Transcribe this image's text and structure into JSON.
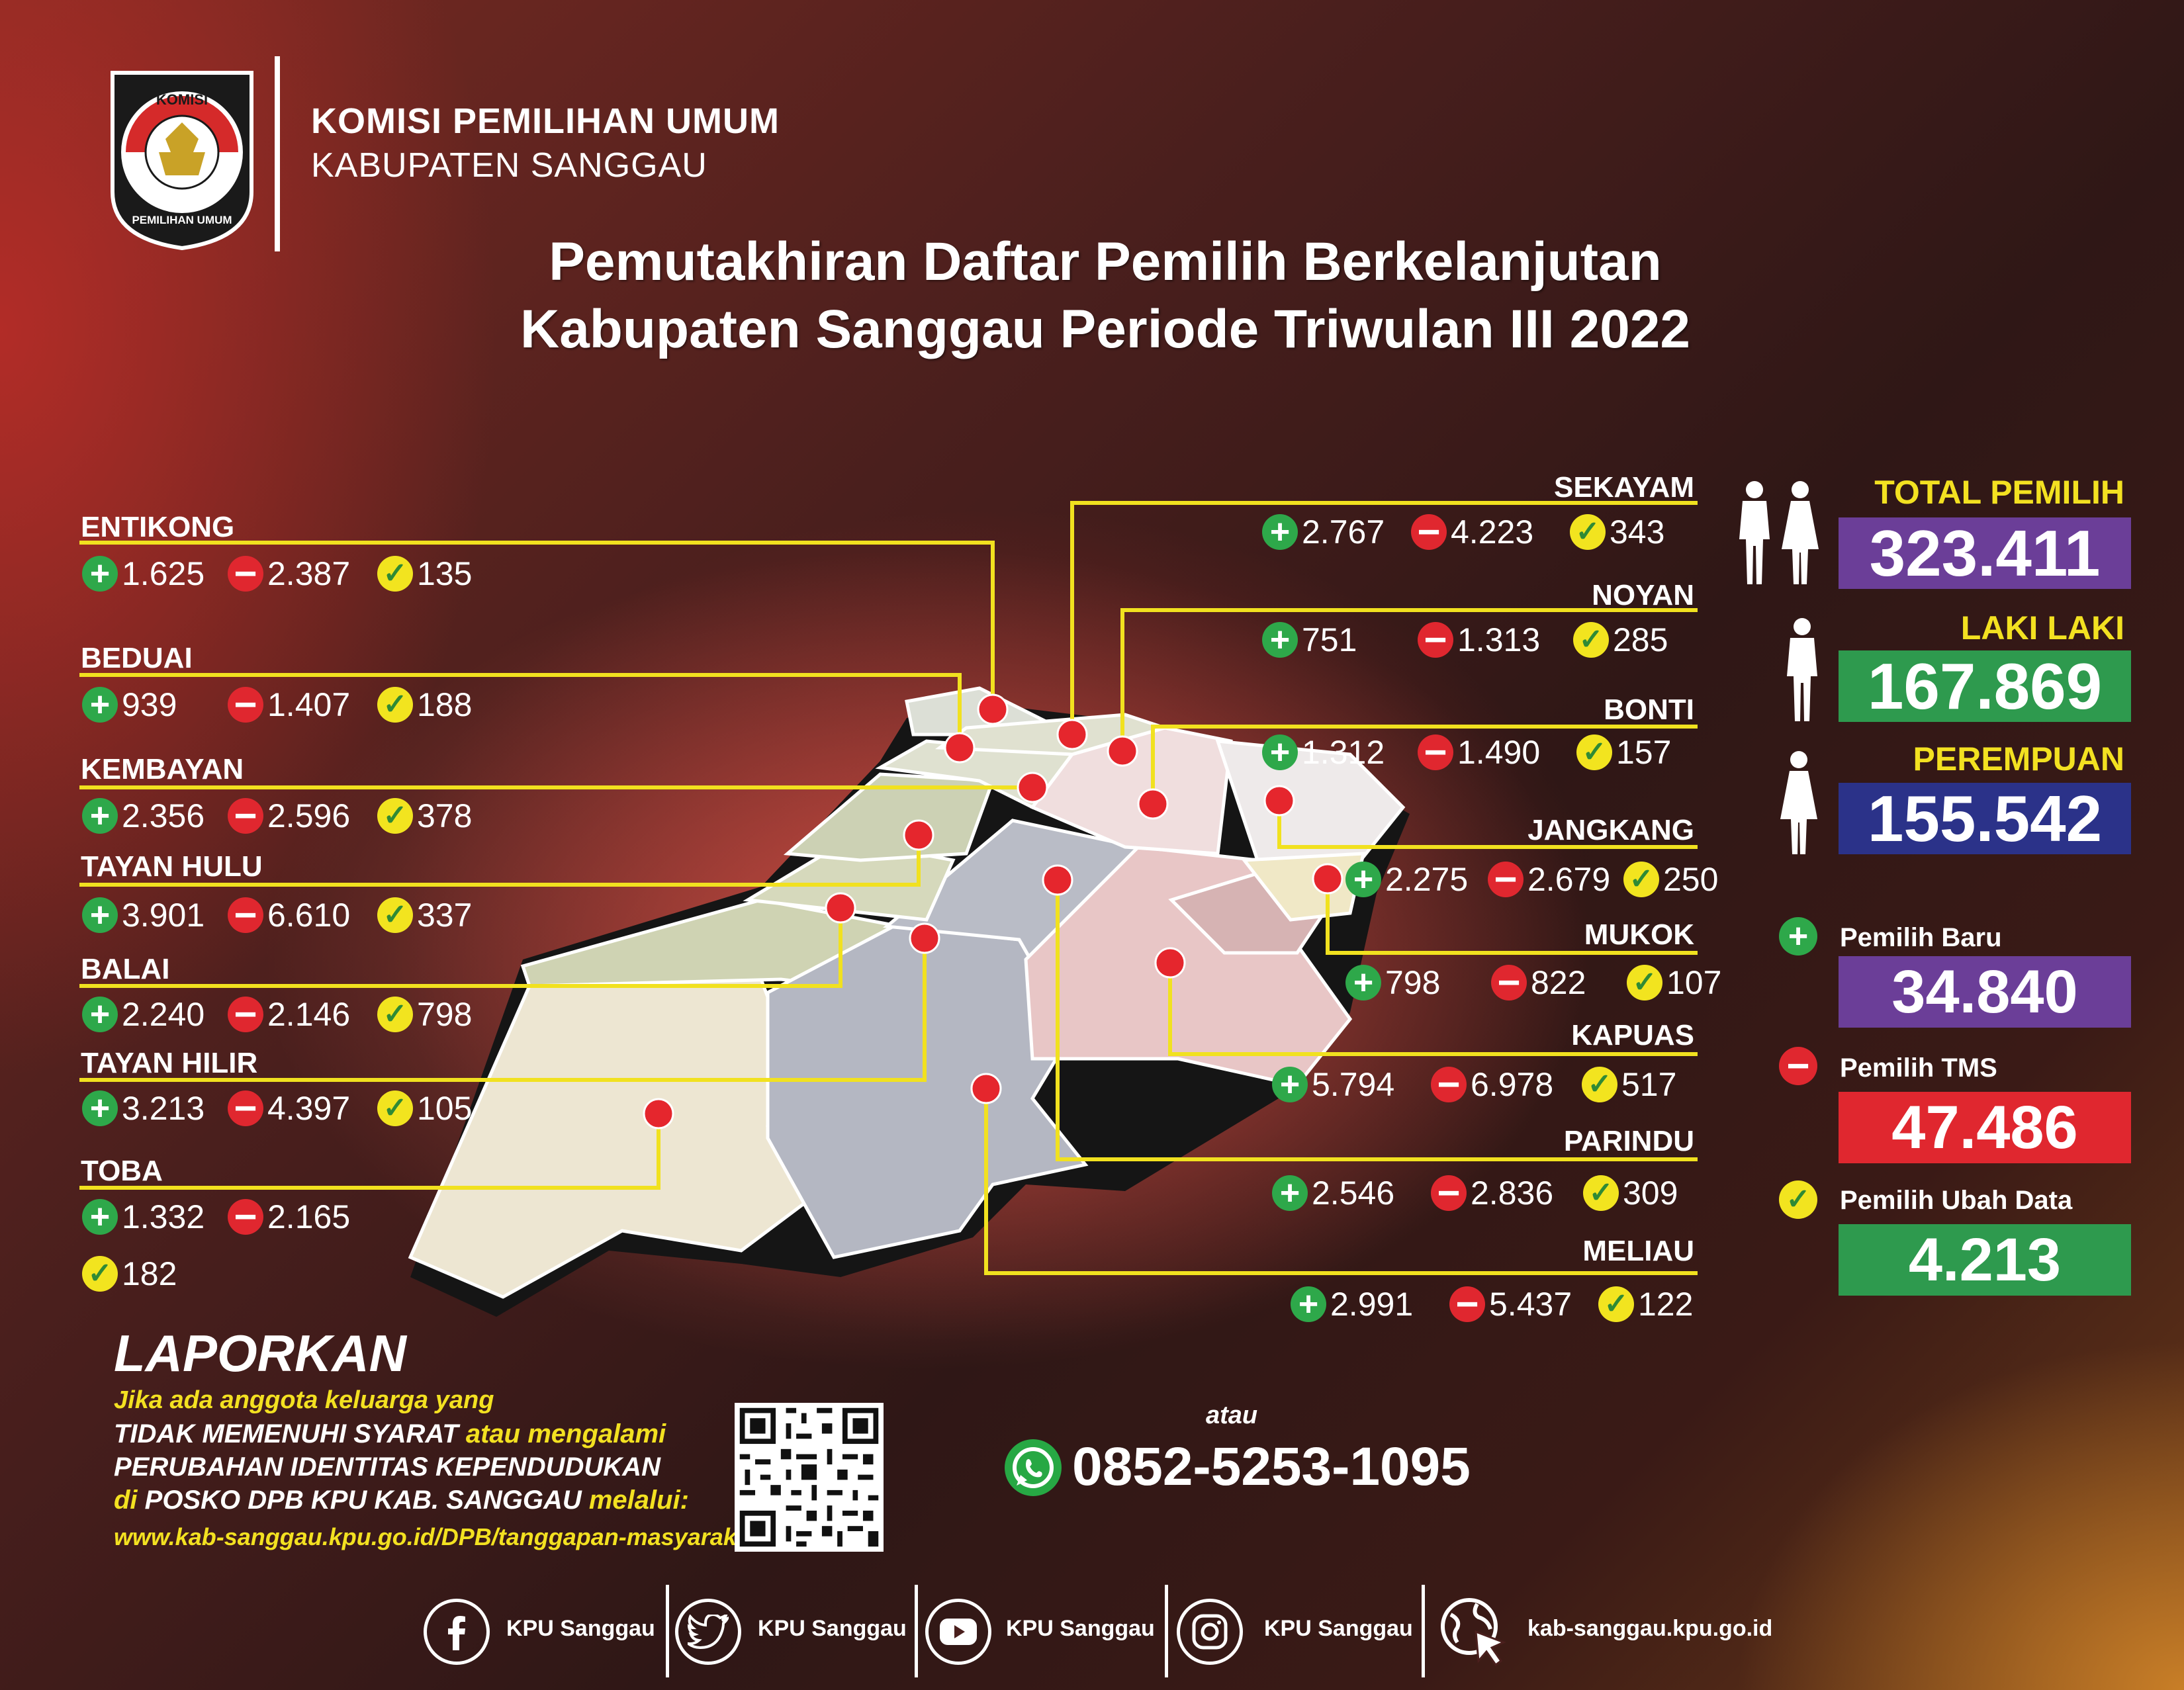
{
  "header": {
    "logo_top_text": "KOMISI",
    "logo_bottom_text": "PEMILIHAN UMUM",
    "org_name": "KOMISI PEMILIHAN UMUM",
    "org_region": "KABUPATEN SANGGAU",
    "title_line1": "Pemutakhiran Daftar Pemilih Berkelanjutan",
    "title_line2": "Kabupaten Sanggau Periode Triwulan III 2022"
  },
  "districts_left": [
    {
      "name": "ENTIKONG",
      "new": "1.625",
      "tms": "2.387",
      "changed": "135"
    },
    {
      "name": "BEDUAI",
      "new": "939",
      "tms": "1.407",
      "changed": "188"
    },
    {
      "name": "KEMBAYAN",
      "new": "2.356",
      "tms": "2.596",
      "changed": "378"
    },
    {
      "name": "TAYAN HULU",
      "new": "3.901",
      "tms": "6.610",
      "changed": "337"
    },
    {
      "name": "BALAI",
      "new": "2.240",
      "tms": "2.146",
      "changed": "798"
    },
    {
      "name": "TAYAN HILIR",
      "new": "3.213",
      "tms": "4.397",
      "changed": "105"
    },
    {
      "name": "TOBA",
      "new": "1.332",
      "tms": "2.165",
      "changed": "182"
    }
  ],
  "districts_right": [
    {
      "name": "SEKAYAM",
      "new": "2.767",
      "tms": "4.223",
      "changed": "343"
    },
    {
      "name": "NOYAN",
      "new": "751",
      "tms": "1.313",
      "changed": "285"
    },
    {
      "name": "BONTI",
      "new": "1.312",
      "tms": "1.490",
      "changed": "157"
    },
    {
      "name": "JANGKANG",
      "new": "2.275",
      "tms": "2.679",
      "changed": "250"
    },
    {
      "name": "MUKOK",
      "new": "798",
      "tms": "822",
      "changed": "107"
    },
    {
      "name": "KAPUAS",
      "new": "5.794",
      "tms": "6.978",
      "changed": "517"
    },
    {
      "name": "PARINDU",
      "new": "2.546",
      "tms": "2.836",
      "changed": "309"
    },
    {
      "name": "MELIAU",
      "new": "2.991",
      "tms": "5.437",
      "changed": "122"
    }
  ],
  "summary": {
    "total_label": "TOTAL PEMILIH",
    "total_value": "323.411",
    "male_label": "LAKI LAKI",
    "male_value": "167.869",
    "female_label": "PEREMPUAN",
    "female_value": "155.542",
    "new_label": "Pemilih Baru",
    "new_value": "34.840",
    "tms_label": "Pemilih TMS",
    "tms_value": "47.486",
    "changed_label": "Pemilih Ubah Data",
    "changed_value": "4.213"
  },
  "colors": {
    "purple": "#6b3e98",
    "green": "#2e9a4e",
    "navy": "#2b3289",
    "red": "#e0272f",
    "yellow": "#f3e121",
    "line": "#f1e11f"
  },
  "report": {
    "heading": "LAPORKAN",
    "line1": "Jika ada anggota keluarga yang",
    "line2a": "TIDAK MEMENUHI SYARAT",
    "line2b": " atau mengalami",
    "line3": "PERUBAHAN IDENTITAS KEPENDUDUKAN",
    "line4a": "di ",
    "line4b": "POSKO DPB KPU KAB. SANGGAU",
    "line4c": " melalui:",
    "url": "www.kab-sanggau.kpu.go.id/DPB/tanggapan-masyarakat",
    "or": "atau",
    "phone": "0852-5253-1095"
  },
  "footer": {
    "facebook": "KPU Sanggau",
    "twitter": "KPU Sanggau",
    "youtube": "KPU Sanggau",
    "instagram": "KPU Sanggau",
    "website": "kab-sanggau.kpu.go.id"
  },
  "icons": [
    "plus-icon",
    "minus-icon",
    "check-icon",
    "whatsapp-icon",
    "facebook-icon",
    "twitter-icon",
    "youtube-icon",
    "instagram-icon",
    "web-cursor-icon",
    "male-icon",
    "female-icon",
    "qr-code"
  ]
}
